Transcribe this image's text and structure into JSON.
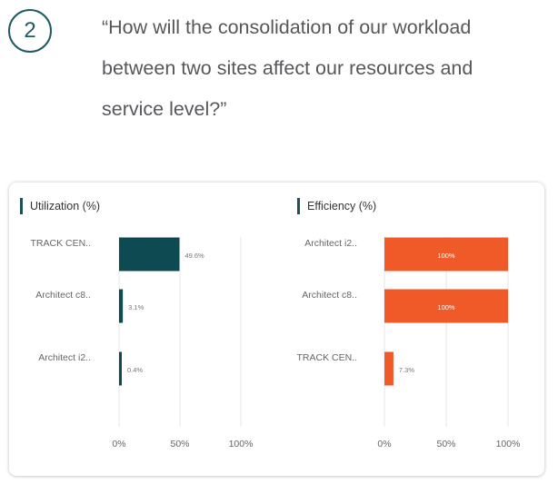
{
  "step_number": "2",
  "question": {
    "lines": [
      "“How will the consolidation of our workload",
      "between two sites affect our resources and",
      "service level?”"
    ]
  },
  "colors": {
    "teal": "#0d4a52",
    "orange": "#f05a28",
    "text": "#55575a"
  },
  "chart_data": [
    {
      "type": "bar",
      "orientation": "horizontal",
      "title": "Utilization (%)",
      "categories": [
        "TRACK CEN..",
        "Architect c8..",
        "Architect i2.."
      ],
      "values": [
        49.6,
        3.1,
        0.4
      ],
      "value_labels": [
        "49.6%",
        "3.1%",
        "0.4%"
      ],
      "xlim": [
        0,
        100
      ],
      "ticks": [
        "0%",
        "50%",
        "100%"
      ],
      "grid": true,
      "color": "#0d4a52"
    },
    {
      "type": "bar",
      "orientation": "horizontal",
      "title": "Efficiency (%)",
      "categories": [
        "Architect i2..",
        "Architect c8..",
        "TRACK CEN.."
      ],
      "values": [
        100,
        100,
        7.3
      ],
      "value_labels": [
        "100%",
        "100%",
        "7.3%"
      ],
      "xlim": [
        0,
        100
      ],
      "ticks": [
        "0%",
        "50%",
        "100%"
      ],
      "grid": true,
      "color": "#f05a28"
    }
  ]
}
